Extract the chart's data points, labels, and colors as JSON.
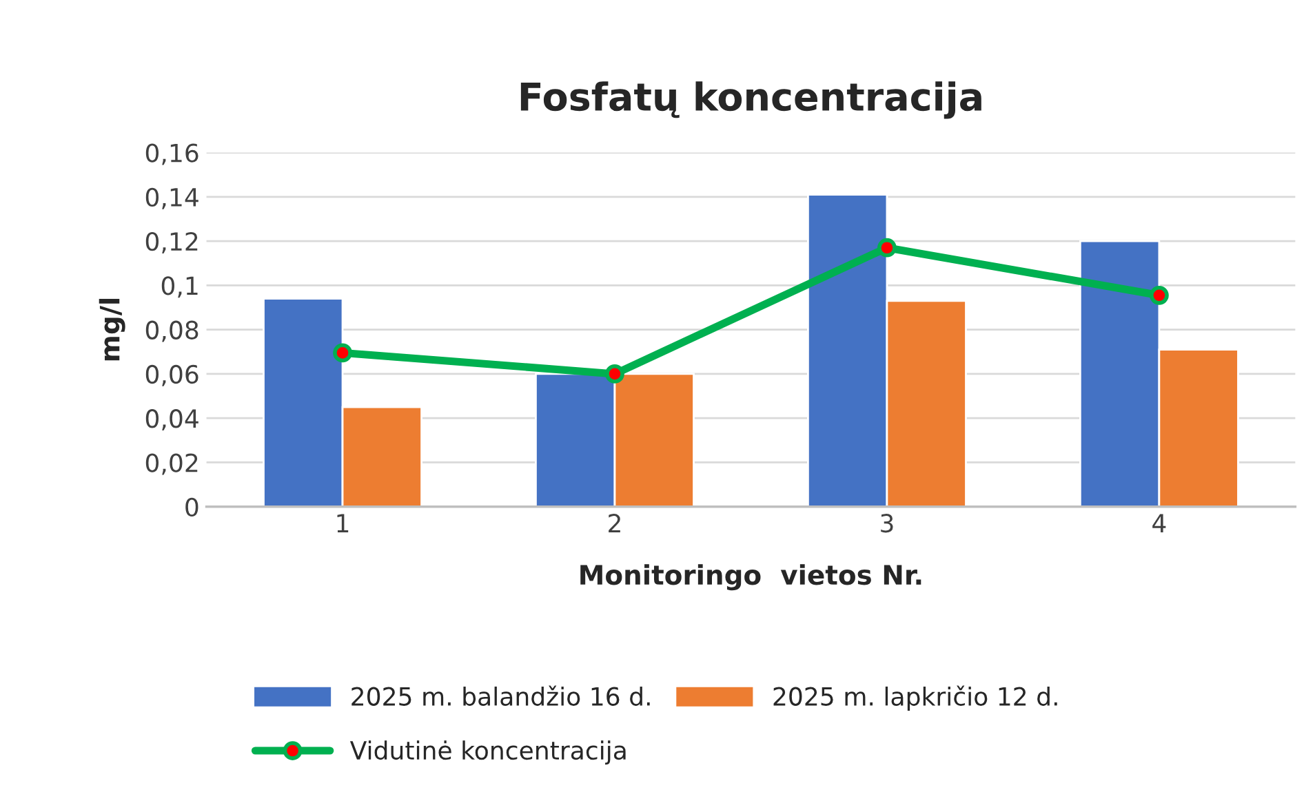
{
  "chart_data": {
    "type": "bar",
    "title": "Fosfatų koncentracija",
    "xlabel": "Monitoringo  vietos Nr.",
    "ylabel": "mg/l",
    "categories": [
      "1",
      "2",
      "3",
      "4"
    ],
    "series": [
      {
        "name": "2025 m. balandžio 16 d.",
        "color": "#4472c4",
        "values": [
          0.094,
          0.06,
          0.141,
          0.12
        ]
      },
      {
        "name": "2025 m. lapkričio 12 d.",
        "color": "#ed7d31",
        "values": [
          0.045,
          0.06,
          0.093,
          0.071
        ]
      },
      {
        "name": "Vidutinė koncentracija",
        "type": "line",
        "color": "#00b050",
        "values": [
          0.0695,
          0.06,
          0.117,
          0.0955
        ]
      }
    ],
    "ylim": [
      0,
      0.16
    ],
    "yticks": [
      0,
      {
        "value": 0.02,
        "label": "0,02"
      },
      {
        "value": 0.04,
        "label": "0,04"
      },
      {
        "value": 0.06,
        "label": "0,06"
      },
      {
        "value": 0.08,
        "label": "0,08"
      },
      {
        "value": 0.1,
        "label": "0,1"
      },
      {
        "value": 0.12,
        "label": "0,12"
      },
      {
        "value": 0.14,
        "label": "0,14"
      },
      {
        "value": 0.16,
        "label": "0,16"
      }
    ],
    "grid": "y",
    "legend": "bottom",
    "marker": "circle"
  }
}
